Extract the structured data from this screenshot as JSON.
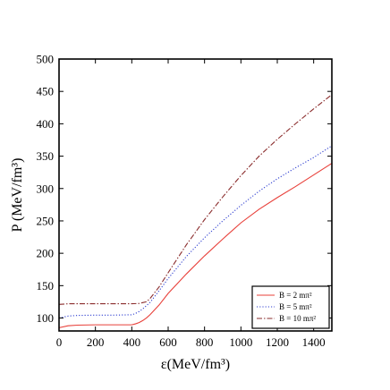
{
  "chart_data": {
    "type": "line",
    "title": "",
    "xlabel": "ε(MeV/fm³)",
    "ylabel": "P (MeV/fm³)",
    "xlim": [
      0,
      1500
    ],
    "ylim": [
      80,
      500
    ],
    "xticks": [
      0,
      200,
      400,
      600,
      800,
      1000,
      1200,
      1400
    ],
    "yticks": [
      100,
      150,
      200,
      250,
      300,
      350,
      400,
      450,
      500
    ],
    "grid": false,
    "legend_position": "bottom-right",
    "series": [
      {
        "name": "B = 2 mπ²",
        "color": "#e8403a",
        "dash": "solid",
        "x": [
          0,
          50,
          100,
          200,
          300,
          400,
          420,
          440,
          460,
          480,
          500,
          550,
          600,
          700,
          800,
          900,
          1000,
          1100,
          1200,
          1300,
          1400,
          1500
        ],
        "y": [
          85,
          88,
          89,
          89.5,
          89.5,
          89.5,
          91,
          93,
          96,
          100,
          105,
          120,
          138,
          168,
          196,
          222,
          247,
          268,
          286,
          303,
          321,
          339
        ]
      },
      {
        "name": "B = 5 mπ²",
        "color": "#2f3fd0",
        "dash": "dotted",
        "x": [
          0,
          50,
          100,
          200,
          300,
          400,
          420,
          440,
          460,
          480,
          500,
          550,
          600,
          700,
          800,
          900,
          1000,
          1100,
          1200,
          1300,
          1400,
          1500
        ],
        "y": [
          100,
          103,
          104,
          104.5,
          104.5,
          105,
          107,
          110,
          114,
          119,
          124,
          142,
          161,
          195,
          224,
          250,
          274,
          296,
          315,
          332,
          348,
          366
        ]
      },
      {
        "name": "B = 10 mπ²",
        "color": "#8a2c2c",
        "dash": "dashdot",
        "x": [
          0,
          50,
          100,
          200,
          300,
          400,
          440,
          480,
          500,
          550,
          600,
          700,
          800,
          900,
          1000,
          1100,
          1200,
          1300,
          1400,
          1500
        ],
        "y": [
          121,
          122,
          122,
          122,
          122,
          122,
          122.5,
          125,
          130,
          148,
          170,
          213,
          252,
          287,
          320,
          350,
          376,
          400,
          423,
          445
        ]
      }
    ]
  }
}
